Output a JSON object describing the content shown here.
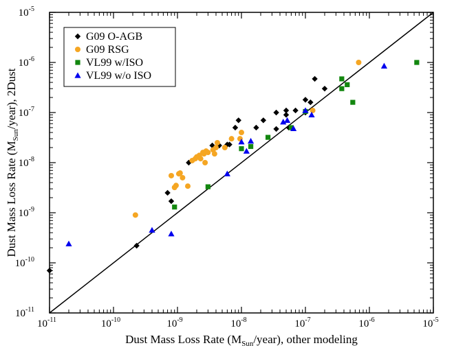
{
  "chart_data": {
    "type": "scatter",
    "title": "",
    "xlabel": {
      "prefix": "Dust Mass Loss Rate (M",
      "sub": "Sun",
      "suffix": "/year), other modeling"
    },
    "ylabel": {
      "prefix": "Dust Mass Loss Rate (M",
      "sub": "Sun",
      "suffix": "/year), 2Dust"
    },
    "xscale": "log",
    "yscale": "log",
    "xlim": [
      1e-11,
      1e-05
    ],
    "ylim": [
      1e-11,
      1e-05
    ],
    "x_ticks": [
      {
        "value": 1e-11,
        "base": "10",
        "exp": "-11"
      },
      {
        "value": 1e-10,
        "base": "10",
        "exp": "-10"
      },
      {
        "value": 1e-09,
        "base": "10",
        "exp": "-9"
      },
      {
        "value": 1e-08,
        "base": "10",
        "exp": "-8"
      },
      {
        "value": 1e-07,
        "base": "10",
        "exp": "-7"
      },
      {
        "value": 1e-06,
        "base": "10",
        "exp": "-6"
      },
      {
        "value": 1e-05,
        "base": "10",
        "exp": "-5"
      }
    ],
    "y_ticks": [
      {
        "value": 1e-11,
        "base": "10",
        "exp": "-11"
      },
      {
        "value": 1e-10,
        "base": "10",
        "exp": "-10"
      },
      {
        "value": 1e-09,
        "base": "10",
        "exp": "-9"
      },
      {
        "value": 1e-08,
        "base": "10",
        "exp": "-8"
      },
      {
        "value": 1e-07,
        "base": "10",
        "exp": "-7"
      },
      {
        "value": 1e-06,
        "base": "10",
        "exp": "-6"
      },
      {
        "value": 1e-05,
        "base": "10",
        "exp": "-5"
      }
    ],
    "grid": false,
    "legend_position": "top-left",
    "reference_line": {
      "type": "one-to-one",
      "color": "#000000"
    },
    "series": [
      {
        "name": "G09 O-AGB",
        "marker": "diamond",
        "color": "#000000",
        "points": [
          [
            1e-11,
            7e-11
          ],
          [
            2.3e-10,
            2.2e-10
          ],
          [
            7e-10,
            2.5e-09
          ],
          [
            8e-10,
            1.7e-09
          ],
          [
            1.5e-09,
            1e-08
          ],
          [
            3.5e-09,
            2.2e-08
          ],
          [
            4.5e-09,
            2.2e-08
          ],
          [
            6e-09,
            2.3e-08
          ],
          [
            6.5e-09,
            2.3e-08
          ],
          [
            8e-09,
            5e-08
          ],
          [
            9e-09,
            7e-08
          ],
          [
            1.7e-08,
            5e-08
          ],
          [
            2.2e-08,
            7e-08
          ],
          [
            3.5e-08,
            1e-07
          ],
          [
            3.5e-08,
            4.7e-08
          ],
          [
            5e-08,
            1.1e-07
          ],
          [
            5e-08,
            9e-08
          ],
          [
            5.5e-08,
            5e-08
          ],
          [
            7e-08,
            1.1e-07
          ],
          [
            1e-07,
            1e-07
          ],
          [
            1e-07,
            1.8e-07
          ],
          [
            1.2e-07,
            1.6e-07
          ],
          [
            1.4e-07,
            4.7e-07
          ],
          [
            2e-07,
            3e-07
          ]
        ]
      },
      {
        "name": "G09 RSG",
        "marker": "circle",
        "color": "#f5a623",
        "points": [
          [
            2.2e-10,
            9e-10
          ],
          [
            8e-10,
            5.5e-09
          ],
          [
            9e-10,
            3.2e-09
          ],
          [
            9.5e-10,
            3.5e-09
          ],
          [
            1.05e-09,
            6e-09
          ],
          [
            1.1e-09,
            6.2e-09
          ],
          [
            1.2e-09,
            5e-09
          ],
          [
            1.45e-09,
            3.4e-09
          ],
          [
            1.7e-09,
            1.1e-08
          ],
          [
            1.9e-09,
            1.2e-08
          ],
          [
            2e-09,
            1.3e-08
          ],
          [
            2.2e-09,
            1.4e-08
          ],
          [
            2.3e-09,
            1.2e-08
          ],
          [
            2.5e-09,
            1.6e-08
          ],
          [
            2.6e-09,
            1.5e-08
          ],
          [
            2.7e-09,
            1e-08
          ],
          [
            2.8e-09,
            1.7e-08
          ],
          [
            3e-09,
            1.6e-08
          ],
          [
            3.6e-09,
            1.8e-08
          ],
          [
            3.8e-09,
            1.5e-08
          ],
          [
            4e-09,
            2e-08
          ],
          [
            4.2e-09,
            2.5e-08
          ],
          [
            5.5e-09,
            2e-08
          ],
          [
            7e-09,
            3e-08
          ],
          [
            9.5e-09,
            3e-08
          ],
          [
            1e-08,
            4e-08
          ],
          [
            1.3e-07,
            1.1e-07
          ],
          [
            6.8e-07,
            1e-06
          ]
        ]
      },
      {
        "name": "VL99 w/ISO",
        "marker": "square",
        "color": "#13870f",
        "points": [
          [
            9e-10,
            1.3e-09
          ],
          [
            3e-09,
            3.3e-09
          ],
          [
            1e-08,
            1.9e-08
          ],
          [
            1.4e-08,
            2.1e-08
          ],
          [
            2.6e-08,
            3.2e-08
          ],
          [
            6e-08,
            5e-08
          ],
          [
            1e-07,
            1.05e-07
          ],
          [
            3.7e-07,
            4.7e-07
          ],
          [
            3.7e-07,
            3e-07
          ],
          [
            4.5e-07,
            3.6e-07
          ],
          [
            5.5e-07,
            1.6e-07
          ],
          [
            5.5e-06,
            1e-06
          ]
        ]
      },
      {
        "name": "VL99 w/o ISO",
        "marker": "triangle",
        "color": "#0000ee",
        "points": [
          [
            2e-11,
            2.4e-10
          ],
          [
            4e-10,
            4.5e-10
          ],
          [
            8e-10,
            3.8e-10
          ],
          [
            6e-09,
            6e-09
          ],
          [
            1e-08,
            2.6e-08
          ],
          [
            1.2e-08,
            1.7e-08
          ],
          [
            1.4e-08,
            2.7e-08
          ],
          [
            4.5e-08,
            6.5e-08
          ],
          [
            5.2e-08,
            7e-08
          ],
          [
            6.5e-08,
            4.8e-08
          ],
          [
            1e-07,
            1.1e-07
          ],
          [
            1.25e-07,
            9e-08
          ],
          [
            1.7e-06,
            8.5e-07
          ]
        ]
      }
    ]
  }
}
